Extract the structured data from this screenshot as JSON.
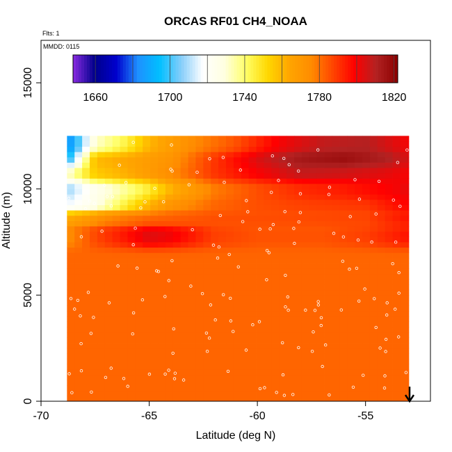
{
  "chart_data": {
    "type": "heatmap",
    "title": "ORCAS RF01 CH4_NOAA",
    "flights_note": "Flts: 1",
    "date_note": "MMDD: 0115",
    "xlabel": "Latitude (deg N)",
    "ylabel": "Altitude (m)",
    "xlim": [
      -70,
      -52
    ],
    "ylim": [
      0,
      17000
    ],
    "x_ticks": [
      -70,
      -65,
      -60,
      -55
    ],
    "y_ticks": [
      0,
      5000,
      10000,
      15000
    ],
    "x_tick_labels": [
      "-70",
      "-65",
      "-60",
      "-55"
    ],
    "y_tick_labels": [
      "0",
      "5000",
      "10000",
      "15000"
    ],
    "colorbar": {
      "range": [
        1648,
        1822
      ],
      "tick_values": [
        1660,
        1700,
        1740,
        1780,
        1820
      ],
      "tick_labels": [
        "1660",
        "1700",
        "1740",
        "1780",
        "1820"
      ],
      "colors": [
        "#8a2be2",
        "#00008b",
        "#0000cd",
        "#1e90ff",
        "#00bfff",
        "#87cefa",
        "#ffffff",
        "#ffffe0",
        "#ffff66",
        "#ffd700",
        "#ffa500",
        "#ff8c00",
        "#ff4500",
        "#ff0000",
        "#b22222",
        "#8b0000"
      ]
    },
    "data_extent": {
      "lat_min": -68.8,
      "lat_max": -53,
      "alt_min": 0,
      "alt_max": 12400
    },
    "background_value": 1782,
    "bands": [
      {
        "alt_center": 12100,
        "alt_halfwidth": 400,
        "values": [
          [
            -68.8,
            1680
          ],
          [
            -67.5,
            1730
          ],
          [
            -66,
            1745
          ],
          [
            -65,
            1760
          ],
          [
            -63,
            1775
          ],
          [
            -61,
            1785
          ],
          [
            -59,
            1800
          ],
          [
            -57,
            1808
          ],
          [
            -55,
            1810
          ],
          [
            -53,
            1800
          ]
        ]
      },
      {
        "alt_center": 11400,
        "alt_halfwidth": 350,
        "values": [
          [
            -68.8,
            1690
          ],
          [
            -67.5,
            1760
          ],
          [
            -66,
            1765
          ],
          [
            -64,
            1772
          ],
          [
            -62,
            1790
          ],
          [
            -60,
            1805
          ],
          [
            -58,
            1815
          ],
          [
            -56,
            1818
          ],
          [
            -54,
            1812
          ],
          [
            -53,
            1805
          ]
        ]
      },
      {
        "alt_center": 10800,
        "alt_halfwidth": 350,
        "values": [
          [
            -68.8,
            1730
          ],
          [
            -67.5,
            1755
          ],
          [
            -66,
            1762
          ],
          [
            -64,
            1775
          ],
          [
            -62,
            1790
          ],
          [
            -60,
            1800
          ],
          [
            -58,
            1808
          ],
          [
            -56,
            1806
          ],
          [
            -54,
            1803
          ],
          [
            -53,
            1800
          ]
        ]
      },
      {
        "alt_center": 9900,
        "alt_halfwidth": 400,
        "values": [
          [
            -68.8,
            1705
          ],
          [
            -67.5,
            1722
          ],
          [
            -66,
            1735
          ],
          [
            -65,
            1745
          ],
          [
            -64,
            1760
          ],
          [
            -62,
            1778
          ],
          [
            -60,
            1786
          ],
          [
            -58,
            1792
          ],
          [
            -56,
            1795
          ],
          [
            -54,
            1800
          ],
          [
            -53,
            1803
          ]
        ]
      },
      {
        "alt_center": 9300,
        "alt_halfwidth": 300,
        "values": [
          [
            -68.8,
            1712
          ],
          [
            -67.5,
            1722
          ],
          [
            -66,
            1745
          ],
          [
            -65,
            1760
          ],
          [
            -64,
            1772
          ],
          [
            -62,
            1782
          ],
          [
            -60,
            1786
          ],
          [
            -58,
            1788
          ],
          [
            -55,
            1790
          ],
          [
            -53,
            1800
          ]
        ]
      },
      {
        "alt_center": 8600,
        "alt_halfwidth": 250,
        "values": [
          [
            -68.8,
            1760
          ],
          [
            -67,
            1775
          ],
          [
            -65,
            1782
          ],
          [
            -62,
            1786
          ],
          [
            -58,
            1787
          ],
          [
            -55,
            1788
          ],
          [
            -53,
            1798
          ]
        ]
      },
      {
        "alt_center": 7750,
        "alt_halfwidth": 400,
        "values": [
          [
            -68.8,
            1772
          ],
          [
            -67.5,
            1788
          ],
          [
            -66,
            1800
          ],
          [
            -65,
            1810
          ],
          [
            -64,
            1806
          ],
          [
            -62,
            1790
          ],
          [
            -60,
            1786
          ],
          [
            -57,
            1786
          ],
          [
            -55,
            1790
          ],
          [
            -53,
            1800
          ]
        ]
      },
      {
        "alt_center": 4000,
        "alt_halfwidth": 3300,
        "values": [
          [
            -68.8,
            1782
          ],
          [
            -60,
            1782
          ],
          [
            -53,
            1782
          ]
        ]
      }
    ]
  }
}
